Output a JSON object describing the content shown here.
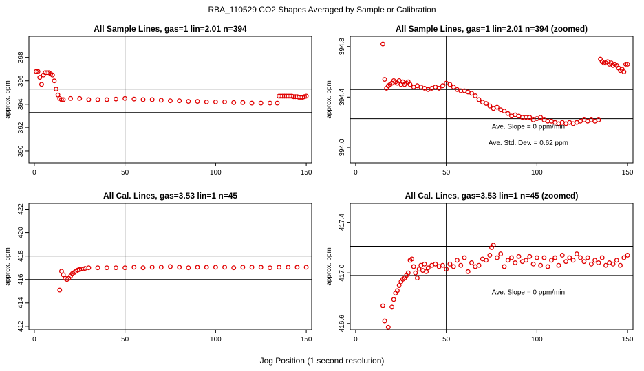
{
  "title": "RBA_110529  CO2 Shapes Averaged by Sample or Calibration",
  "xlabel": "Jog Position (1 second resolution)",
  "colors": {
    "points": "#e00000",
    "lines": "#000000"
  },
  "chart_data": [
    {
      "type": "scatter",
      "title": "All Sample Lines, gas=1 lin=2.01 n=394",
      "ylabel": "approx. ppm",
      "xlim": [
        -3,
        153
      ],
      "ylim": [
        389,
        399.8
      ],
      "xticks": [
        0,
        50,
        100,
        150
      ],
      "yticks": [
        390,
        392,
        394,
        396,
        398
      ],
      "vline": 50,
      "hlines": [
        393.3,
        395.3
      ],
      "annotations": [],
      "x": [
        1,
        2,
        3,
        4,
        5,
        6,
        7,
        8,
        9,
        10,
        11,
        12,
        13,
        14,
        15,
        16,
        20,
        25,
        30,
        35,
        40,
        45,
        50,
        55,
        60,
        65,
        70,
        75,
        80,
        85,
        90,
        95,
        100,
        105,
        110,
        115,
        120,
        125,
        130,
        134,
        135,
        136,
        137,
        138,
        139,
        140,
        141,
        142,
        143,
        144,
        145,
        146,
        147,
        148,
        149,
        150
      ],
      "y": [
        396.8,
        396.8,
        396.3,
        395.7,
        396.5,
        396.7,
        396.7,
        396.7,
        396.6,
        396.5,
        396.0,
        395.3,
        394.8,
        394.5,
        394.4,
        394.4,
        394.5,
        394.5,
        394.4,
        394.4,
        394.4,
        394.45,
        394.5,
        394.45,
        394.4,
        394.4,
        394.35,
        394.3,
        394.3,
        394.25,
        394.25,
        394.2,
        394.2,
        394.2,
        394.15,
        394.15,
        394.1,
        394.1,
        394.1,
        394.1,
        394.7,
        394.7,
        394.7,
        394.7,
        394.7,
        394.7,
        394.7,
        394.7,
        394.65,
        394.65,
        394.65,
        394.6,
        394.6,
        394.6,
        394.65,
        394.7
      ]
    },
    {
      "type": "scatter",
      "title": "All Sample Lines, gas=1 lin=2.01 n=394 (zoomed)",
      "ylabel": "approx. ppm",
      "xlim": [
        -3,
        153
      ],
      "ylim": [
        393.88,
        394.88
      ],
      "xticks": [
        0,
        50,
        100,
        150
      ],
      "yticks": [
        394.0,
        394.4,
        394.8
      ],
      "vline": 50,
      "hlines": [
        394.23,
        394.46
      ],
      "annotations": [
        "Ave. Slope =  0  ppm/min",
        "Ave. Std. Dev. =  0.62  ppm"
      ],
      "x": [
        15,
        16,
        17,
        18,
        19,
        20,
        21,
        22,
        23,
        24,
        25,
        26,
        27,
        28,
        29,
        30,
        32,
        34,
        36,
        38,
        40,
        42,
        44,
        46,
        48,
        50,
        52,
        54,
        56,
        58,
        60,
        62,
        64,
        66,
        68,
        70,
        72,
        74,
        76,
        78,
        80,
        82,
        84,
        86,
        88,
        90,
        92,
        94,
        96,
        98,
        100,
        102,
        104,
        106,
        108,
        110,
        112,
        114,
        116,
        118,
        120,
        122,
        124,
        126,
        128,
        130,
        132,
        134,
        135,
        136,
        137,
        138,
        139,
        140,
        141,
        142,
        143,
        144,
        145,
        146,
        147,
        148,
        149,
        150
      ],
      "y": [
        394.82,
        394.54,
        394.47,
        394.49,
        394.5,
        394.51,
        394.53,
        394.52,
        394.51,
        394.53,
        394.5,
        394.52,
        394.5,
        394.51,
        394.52,
        394.5,
        394.48,
        394.49,
        394.48,
        394.47,
        394.46,
        394.47,
        394.48,
        394.47,
        394.49,
        394.51,
        394.5,
        394.48,
        394.46,
        394.45,
        394.45,
        394.44,
        394.43,
        394.41,
        394.38,
        394.36,
        394.35,
        394.33,
        394.31,
        394.32,
        394.3,
        394.29,
        394.27,
        394.25,
        394.26,
        394.25,
        394.24,
        394.24,
        394.24,
        394.22,
        394.23,
        394.24,
        394.22,
        394.21,
        394.21,
        394.2,
        394.19,
        394.2,
        394.19,
        394.2,
        394.19,
        394.2,
        394.21,
        394.22,
        394.21,
        394.22,
        394.21,
        394.22,
        394.7,
        394.68,
        394.67,
        394.67,
        394.68,
        394.66,
        394.67,
        394.65,
        394.66,
        394.65,
        394.63,
        394.61,
        394.62,
        394.6,
        394.66,
        394.66
      ]
    },
    {
      "type": "scatter",
      "title": "All Cal. Lines, gas=3.53 lin=1 n=45",
      "ylabel": "approx. ppm",
      "xlim": [
        -3,
        153
      ],
      "ylim": [
        411.7,
        422.5
      ],
      "xticks": [
        0,
        50,
        100,
        150
      ],
      "yticks": [
        412,
        414,
        416,
        418,
        420,
        422
      ],
      "vline": 50,
      "hlines": [
        416.0,
        418.0
      ],
      "annotations": [],
      "x": [
        14,
        15,
        16,
        17,
        18,
        19,
        20,
        21,
        22,
        23,
        24,
        25,
        26,
        27,
        28,
        30,
        35,
        40,
        45,
        50,
        55,
        60,
        65,
        70,
        75,
        80,
        85,
        90,
        95,
        100,
        105,
        110,
        115,
        120,
        125,
        130,
        135,
        140,
        145,
        150
      ],
      "y": [
        415.1,
        416.7,
        416.4,
        416.1,
        416.0,
        416.1,
        416.3,
        416.5,
        416.6,
        416.7,
        416.8,
        416.85,
        416.9,
        416.9,
        416.95,
        417.0,
        417.0,
        417.0,
        417.0,
        417.0,
        417.05,
        417.0,
        417.05,
        417.05,
        417.1,
        417.05,
        417.0,
        417.05,
        417.05,
        417.05,
        417.05,
        417.0,
        417.05,
        417.05,
        417.05,
        417.0,
        417.05,
        417.05,
        417.05,
        417.05
      ]
    },
    {
      "type": "scatter",
      "title": "All Cal. Lines, gas=3.53 lin=1 n=45 (zoomed)",
      "ylabel": "approx. ppm",
      "xlim": [
        -3,
        153
      ],
      "ylim": [
        416.55,
        417.55
      ],
      "xticks": [
        0,
        50,
        100,
        150
      ],
      "yticks": [
        416.6,
        417.0,
        417.4
      ],
      "vline": 50,
      "hlines": [
        416.98,
        417.21
      ],
      "annotations": [
        "Ave. Slope =  0  ppm/min"
      ],
      "x": [
        15,
        16,
        18,
        20,
        21,
        22,
        23,
        24,
        25,
        26,
        27,
        28,
        29,
        30,
        31,
        32,
        33,
        34,
        35,
        36,
        37,
        38,
        39,
        40,
        42,
        44,
        46,
        48,
        50,
        52,
        54,
        56,
        58,
        60,
        62,
        64,
        66,
        68,
        70,
        72,
        74,
        75,
        76,
        78,
        80,
        82,
        84,
        86,
        88,
        90,
        92,
        94,
        96,
        98,
        100,
        102,
        104,
        106,
        108,
        110,
        112,
        114,
        116,
        118,
        120,
        122,
        124,
        126,
        128,
        130,
        132,
        134,
        136,
        138,
        140,
        142,
        144,
        146,
        148,
        150
      ],
      "y": [
        416.74,
        416.62,
        416.57,
        416.73,
        416.79,
        416.84,
        416.86,
        416.9,
        416.93,
        416.95,
        416.96,
        416.98,
        417.0,
        417.1,
        417.11,
        417.05,
        417.0,
        416.96,
        417.03,
        417.06,
        417.02,
        417.07,
        417.01,
        417.04,
        417.06,
        417.07,
        417.05,
        417.06,
        417.03,
        417.07,
        417.05,
        417.1,
        417.06,
        417.12,
        417.01,
        417.08,
        417.05,
        417.06,
        417.11,
        417.1,
        417.14,
        417.2,
        417.22,
        417.12,
        417.15,
        417.05,
        417.1,
        417.12,
        417.08,
        417.13,
        417.09,
        417.1,
        417.13,
        417.07,
        417.12,
        417.06,
        417.12,
        417.05,
        417.1,
        417.12,
        417.06,
        417.14,
        417.09,
        417.12,
        417.1,
        417.15,
        417.12,
        417.09,
        417.12,
        417.07,
        417.1,
        417.08,
        417.12,
        417.06,
        417.08,
        417.07,
        417.1,
        417.06,
        417.12,
        417.14
      ]
    }
  ]
}
